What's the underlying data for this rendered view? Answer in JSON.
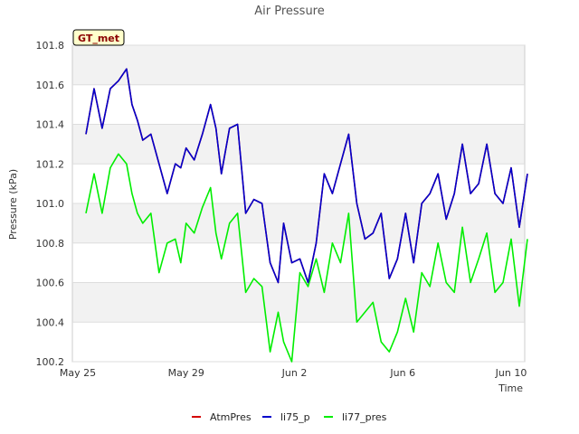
{
  "chart_data": {
    "type": "line",
    "title": "Air Pressure",
    "xlabel": "Time",
    "ylabel": "Pressure (kPa)",
    "badge": "GT_met",
    "xlim": [
      -0.2,
      16.5
    ],
    "ylim": [
      100.2,
      101.8
    ],
    "yticks": [
      100.2,
      100.4,
      100.6,
      100.8,
      101.0,
      101.2,
      101.4,
      101.6,
      101.8
    ],
    "xticks": [
      {
        "day": 0,
        "label": "May 25"
      },
      {
        "day": 4,
        "label": "May 29"
      },
      {
        "day": 8,
        "label": "Jun 2"
      },
      {
        "day": 12,
        "label": "Jun 6"
      },
      {
        "day": 16,
        "label": "Jun 10"
      }
    ],
    "x": [
      0.3,
      0.6,
      0.9,
      1.2,
      1.5,
      1.8,
      2.0,
      2.2,
      2.4,
      2.7,
      3.0,
      3.3,
      3.6,
      3.8,
      4.0,
      4.3,
      4.6,
      4.9,
      5.1,
      5.3,
      5.6,
      5.9,
      6.2,
      6.5,
      6.8,
      7.1,
      7.4,
      7.6,
      7.9,
      8.2,
      8.5,
      8.8,
      9.1,
      9.4,
      9.7,
      10.0,
      10.3,
      10.6,
      10.9,
      11.2,
      11.5,
      11.8,
      12.1,
      12.4,
      12.7,
      13.0,
      13.3,
      13.6,
      13.9,
      14.2,
      14.5,
      14.8,
      15.1,
      15.4,
      15.7,
      16.0,
      16.3,
      16.6
    ],
    "series": [
      {
        "name": "AtmPres",
        "color": "#d40000",
        "values": [
          101.35,
          101.58,
          101.38,
          101.58,
          101.62,
          101.68,
          101.5,
          101.42,
          101.32,
          101.35,
          101.2,
          101.05,
          101.2,
          101.18,
          101.28,
          101.22,
          101.35,
          101.5,
          101.38,
          101.15,
          101.38,
          101.4,
          100.95,
          101.02,
          101.0,
          100.7,
          100.6,
          100.9,
          100.7,
          100.72,
          100.6,
          100.8,
          101.15,
          101.05,
          101.2,
          101.35,
          101.0,
          100.82,
          100.85,
          100.95,
          100.62,
          100.72,
          100.95,
          100.7,
          101.0,
          101.05,
          101.15,
          100.92,
          101.05,
          101.3,
          101.05,
          101.1,
          101.3,
          101.05,
          101.0,
          101.18,
          100.88,
          101.15
        ]
      },
      {
        "name": "li75_p",
        "color": "#0000cc",
        "values": [
          101.35,
          101.58,
          101.38,
          101.58,
          101.62,
          101.68,
          101.5,
          101.42,
          101.32,
          101.35,
          101.2,
          101.05,
          101.2,
          101.18,
          101.28,
          101.22,
          101.35,
          101.5,
          101.38,
          101.15,
          101.38,
          101.4,
          100.95,
          101.02,
          101.0,
          100.7,
          100.6,
          100.9,
          100.7,
          100.72,
          100.6,
          100.8,
          101.15,
          101.05,
          101.2,
          101.35,
          101.0,
          100.82,
          100.85,
          100.95,
          100.62,
          100.72,
          100.95,
          100.7,
          101.0,
          101.05,
          101.15,
          100.92,
          101.05,
          101.3,
          101.05,
          101.1,
          101.3,
          101.05,
          101.0,
          101.18,
          100.88,
          101.15
        ]
      },
      {
        "name": "li77_pres",
        "color": "#00ee00",
        "values": [
          100.95,
          101.15,
          100.95,
          101.18,
          101.25,
          101.2,
          101.05,
          100.95,
          100.9,
          100.95,
          100.65,
          100.8,
          100.82,
          100.7,
          100.9,
          100.85,
          100.98,
          101.08,
          100.85,
          100.72,
          100.9,
          100.95,
          100.55,
          100.62,
          100.58,
          100.25,
          100.45,
          100.3,
          100.2,
          100.65,
          100.58,
          100.72,
          100.55,
          100.8,
          100.7,
          100.95,
          100.4,
          100.45,
          100.5,
          100.3,
          100.25,
          100.35,
          100.52,
          100.35,
          100.65,
          100.58,
          100.8,
          100.6,
          100.55,
          100.88,
          100.6,
          100.72,
          100.85,
          100.55,
          100.6,
          100.82,
          100.48,
          100.82
        ]
      }
    ],
    "legend_position": "bottom-center",
    "grid": true
  }
}
